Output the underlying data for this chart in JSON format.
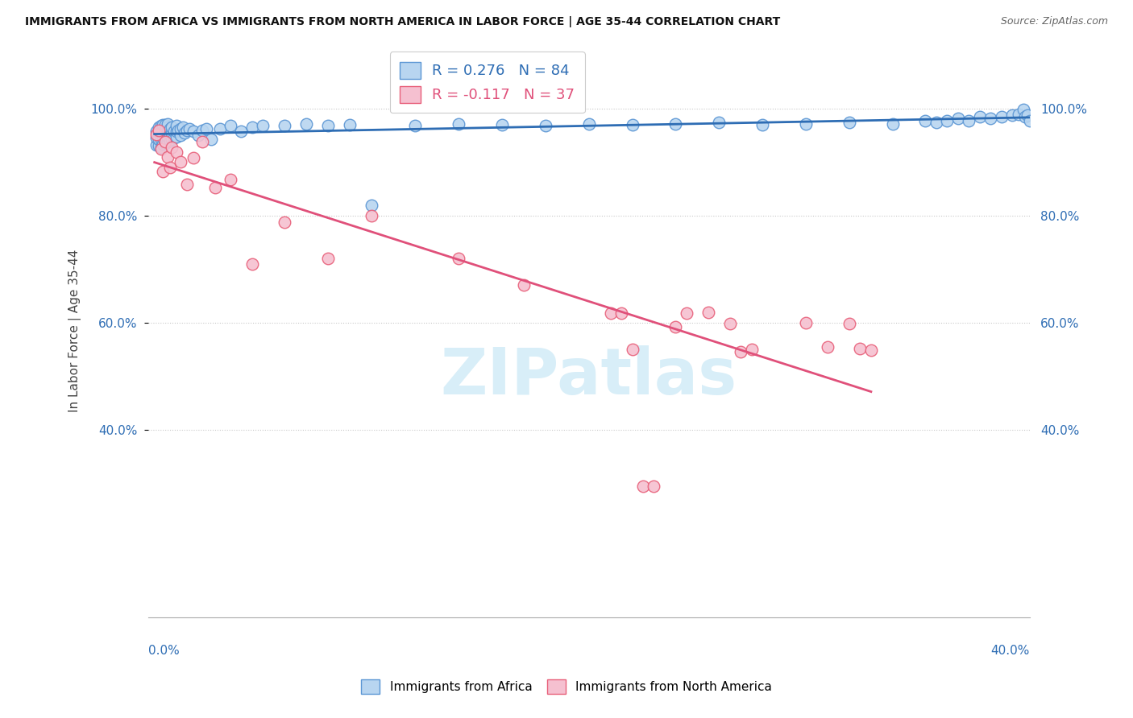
{
  "title": "IMMIGRANTS FROM AFRICA VS IMMIGRANTS FROM NORTH AMERICA IN LABOR FORCE | AGE 35-44 CORRELATION CHART",
  "source": "Source: ZipAtlas.com",
  "ylabel": "In Labor Force | Age 35-44",
  "yaxis_ticks": [
    "100.0%",
    "80.0%",
    "60.0%",
    "40.0%"
  ],
  "yaxis_tick_vals": [
    1.0,
    0.8,
    0.6,
    0.4
  ],
  "R_africa": 0.276,
  "N_africa": 84,
  "R_northamerica": -0.117,
  "N_northamerica": 37,
  "africa_fill_color": "#b8d5f0",
  "africa_edge_color": "#5b96d4",
  "northamerica_fill_color": "#f5c0d0",
  "northamerica_edge_color": "#e8607a",
  "africa_line_color": "#2e6db4",
  "northamerica_line_color": "#e0507a",
  "watermark_text": "ZIPatlas",
  "watermark_color": "#d8eef8",
  "background_color": "#ffffff",
  "grid_color": "#c8c8c8",
  "xlim": [
    -0.003,
    0.403
  ],
  "ylim": [
    0.05,
    1.12
  ],
  "title_color": "#111111",
  "source_color": "#666666",
  "axis_label_color": "#2e6db4",
  "africa_x": [
    0.001,
    0.001,
    0.001,
    0.002,
    0.002,
    0.002,
    0.002,
    0.003,
    0.003,
    0.003,
    0.003,
    0.004,
    0.004,
    0.004,
    0.004,
    0.005,
    0.005,
    0.005,
    0.005,
    0.005,
    0.006,
    0.006,
    0.006,
    0.006,
    0.006,
    0.007,
    0.007,
    0.007,
    0.008,
    0.008,
    0.008,
    0.009,
    0.009,
    0.01,
    0.01,
    0.01,
    0.011,
    0.012,
    0.012,
    0.013,
    0.014,
    0.015,
    0.016,
    0.018,
    0.02,
    0.022,
    0.024,
    0.026,
    0.03,
    0.035,
    0.04,
    0.045,
    0.05,
    0.06,
    0.07,
    0.08,
    0.09,
    0.1,
    0.12,
    0.14,
    0.16,
    0.18,
    0.2,
    0.22,
    0.24,
    0.26,
    0.28,
    0.3,
    0.32,
    0.34,
    0.355,
    0.36,
    0.365,
    0.37,
    0.375,
    0.38,
    0.385,
    0.39,
    0.395,
    0.398,
    0.4,
    0.401,
    0.402,
    0.403
  ],
  "africa_y": [
    0.932,
    0.945,
    0.958,
    0.93,
    0.943,
    0.956,
    0.965,
    0.928,
    0.942,
    0.955,
    0.968,
    0.933,
    0.946,
    0.958,
    0.97,
    0.935,
    0.946,
    0.957,
    0.963,
    0.97,
    0.938,
    0.948,
    0.957,
    0.965,
    0.972,
    0.94,
    0.952,
    0.963,
    0.943,
    0.955,
    0.965,
    0.945,
    0.958,
    0.948,
    0.958,
    0.968,
    0.96,
    0.95,
    0.963,
    0.965,
    0.955,
    0.96,
    0.963,
    0.958,
    0.95,
    0.96,
    0.963,
    0.942,
    0.963,
    0.968,
    0.958,
    0.965,
    0.968,
    0.968,
    0.972,
    0.968,
    0.97,
    0.82,
    0.968,
    0.972,
    0.97,
    0.968,
    0.972,
    0.97,
    0.972,
    0.975,
    0.97,
    0.972,
    0.975,
    0.972,
    0.978,
    0.975,
    0.978,
    0.982,
    0.978,
    0.985,
    0.982,
    0.985,
    0.988,
    0.99,
    0.998,
    0.985,
    0.988,
    0.978
  ],
  "northamerica_x": [
    0.001,
    0.002,
    0.003,
    0.004,
    0.005,
    0.006,
    0.007,
    0.008,
    0.01,
    0.012,
    0.015,
    0.018,
    0.022,
    0.028,
    0.035,
    0.045,
    0.06,
    0.08,
    0.1,
    0.14,
    0.17,
    0.21,
    0.215,
    0.22,
    0.225,
    0.23,
    0.24,
    0.245,
    0.255,
    0.265,
    0.27,
    0.275,
    0.3,
    0.31,
    0.32,
    0.325,
    0.33
  ],
  "northamerica_y": [
    0.952,
    0.96,
    0.925,
    0.882,
    0.938,
    0.91,
    0.89,
    0.928,
    0.918,
    0.9,
    0.858,
    0.908,
    0.938,
    0.852,
    0.868,
    0.71,
    0.788,
    0.72,
    0.8,
    0.72,
    0.67,
    0.618,
    0.618,
    0.55,
    0.295,
    0.295,
    0.592,
    0.618,
    0.62,
    0.598,
    0.545,
    0.55,
    0.6,
    0.555,
    0.598,
    0.552,
    0.548
  ]
}
